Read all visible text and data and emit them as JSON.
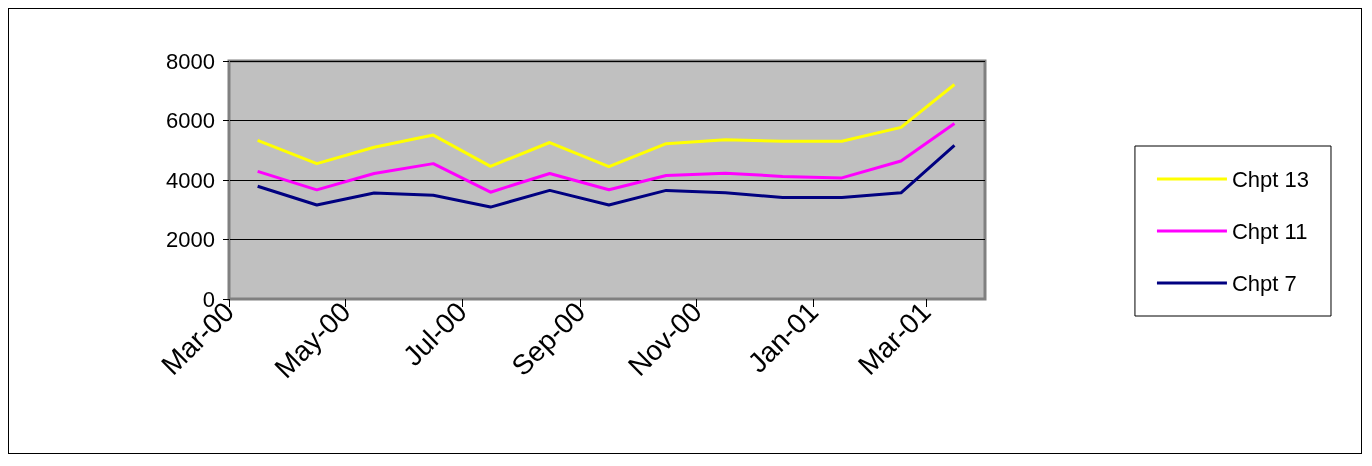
{
  "chart_data": {
    "type": "line",
    "x": [
      "2000-03-16",
      "2000-04-16",
      "2000-05-16",
      "2000-06-16",
      "2000-07-16",
      "2000-08-16",
      "2000-09-16",
      "2000-10-16",
      "2000-11-16",
      "2000-12-16",
      "2001-01-16",
      "2001-02-16",
      "2001-03-16"
    ],
    "series": [
      {
        "name": "Chpt 13",
        "color": "#ffff00",
        "values": [
          5330,
          4550,
          5100,
          5510,
          4460,
          5260,
          4450,
          5220,
          5350,
          5300,
          5300,
          5770,
          7210
        ]
      },
      {
        "name": "Chpt 11",
        "color": "#ff00ff",
        "values": [
          4290,
          3670,
          4220,
          4550,
          3590,
          4220,
          3670,
          4150,
          4230,
          4120,
          4070,
          4640,
          5900
        ]
      },
      {
        "name": "Chpt 7",
        "color": "#000080",
        "values": [
          3790,
          3160,
          3560,
          3490,
          3090,
          3650,
          3160,
          3650,
          3570,
          3410,
          3410,
          3570,
          5160
        ]
      }
    ],
    "xlim": [
      "2000-03",
      "2001-04"
    ],
    "xticks": [
      {
        "value": "2000-03",
        "label": "Mar-00"
      },
      {
        "value": "2000-05",
        "label": "May-00"
      },
      {
        "value": "2000-07",
        "label": "Jul-00"
      },
      {
        "value": "2000-09",
        "label": "Sep-00"
      },
      {
        "value": "2000-11",
        "label": "Nov-00"
      },
      {
        "value": "2001-01",
        "label": "Jan-01"
      },
      {
        "value": "2001-03",
        "label": "Mar-01"
      }
    ],
    "ylim": [
      0,
      8000
    ],
    "yticks": [
      0,
      2000,
      4000,
      6000,
      8000
    ],
    "grid": "y",
    "legend": "right",
    "marker": "none",
    "line_style": "solid"
  }
}
